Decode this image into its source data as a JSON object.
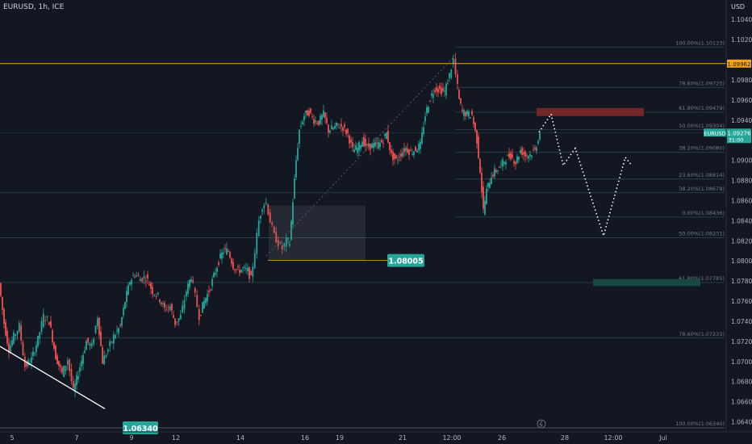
{
  "header": {
    "title": "EURUSD, 1h, ICE",
    "currency": "USD"
  },
  "colors": {
    "background": "#131722",
    "up": "#26a69a",
    "down": "#ef5350",
    "fib_line": "#4a6b6b",
    "fib_text": "#787b86",
    "horizontal": "#f7a21b",
    "supply_zone": "#8b2b2b",
    "demand_zone": "#1b4d45",
    "box": "#2a2e39",
    "trendline": "#ffffff",
    "projection": "#ffffff",
    "price_tag": "#26a69a"
  },
  "chart_data": {
    "type": "candlestick",
    "symbol": "EURUSD",
    "ylim": [
      1.063,
      1.1045
    ],
    "y_ticks": [
      "1.10400",
      "1.10200",
      "1.09800",
      "1.09600",
      "1.09400",
      "1.09000",
      "1.08800",
      "1.08600",
      "1.08400",
      "1.08200",
      "1.08000",
      "1.07800",
      "1.07600",
      "1.07400",
      "1.07200",
      "1.07000",
      "1.06800",
      "1.06600",
      "1.06400"
    ],
    "x_ticks": [
      "5",
      "7",
      "9",
      "12",
      "14",
      "16",
      "19",
      "21",
      "12:00",
      "26",
      "28",
      "12:00",
      "Jul"
    ],
    "last_price": {
      "label": "EURUSD",
      "value": "1.09276",
      "countdown": "31:00",
      "price": 1.09276
    },
    "orange_level": {
      "value": "1.09962",
      "price": 1.09962
    },
    "fib_levels": [
      {
        "label": "100.00%(1.10123)",
        "price": 1.10123
      },
      {
        "label": "78.60%(1.09725)",
        "price": 1.09725
      },
      {
        "label": "61.80%(1.09479)",
        "price": 1.09479
      },
      {
        "label": "50.00%(1.09304)",
        "price": 1.09304
      },
      {
        "label": "38.20%(1.09080)",
        "price": 1.0908
      },
      {
        "label": "23.60%(1.08814)",
        "price": 1.08814
      },
      {
        "label": "38.20%(1.08678)",
        "price": 1.08678
      },
      {
        "label": "0.00%(1.08436)",
        "price": 1.08436
      },
      {
        "label": "50.00%(1.08231)",
        "price": 1.08231
      },
      {
        "label": "61.80%(1.07785)",
        "price": 1.07785
      },
      {
        "label": "78.60%(1.07233)",
        "price": 1.07233
      },
      {
        "label": "100.00%(1.06340)",
        "price": 1.0634
      }
    ],
    "labels": {
      "mid": "1.08005",
      "low": "1.06340"
    },
    "projection_path": [
      1.0928,
      1.0946,
      1.0895,
      1.0912,
      1.0825,
      1.0903,
      1.0895
    ],
    "path_points": [
      [
        0,
        1.0778
      ],
      [
        6,
        1.0738
      ],
      [
        12,
        1.0712
      ],
      [
        18,
        1.0725
      ],
      [
        25,
        1.0735
      ],
      [
        32,
        1.0695
      ],
      [
        40,
        1.0702
      ],
      [
        48,
        1.0722
      ],
      [
        55,
        1.0745
      ],
      [
        62,
        1.074
      ],
      [
        70,
        1.0705
      ],
      [
        78,
        1.0688
      ],
      [
        85,
        1.0702
      ],
      [
        92,
        1.067
      ],
      [
        100,
        1.0695
      ],
      [
        108,
        1.072
      ],
      [
        115,
        1.0715
      ],
      [
        122,
        1.0745
      ],
      [
        128,
        1.07
      ],
      [
        135,
        1.0712
      ],
      [
        142,
        1.0725
      ],
      [
        150,
        1.0735
      ],
      [
        156,
        1.076
      ],
      [
        162,
        1.078
      ],
      [
        168,
        1.0787
      ],
      [
        175,
        1.0782
      ],
      [
        182,
        1.0784
      ],
      [
        190,
        1.077
      ],
      [
        197,
        1.0765
      ],
      [
        205,
        1.0752
      ],
      [
        212,
        1.0755
      ],
      [
        218,
        1.0738
      ],
      [
        225,
        1.0745
      ],
      [
        232,
        1.077
      ],
      [
        238,
        1.0785
      ],
      [
        243,
        1.0765
      ],
      [
        248,
        1.0745
      ],
      [
        254,
        1.076
      ],
      [
        260,
        1.077
      ],
      [
        266,
        1.0785
      ],
      [
        272,
        1.08
      ],
      [
        278,
        1.081
      ],
      [
        284,
        1.081
      ],
      [
        290,
        1.0795
      ],
      [
        296,
        1.079
      ],
      [
        302,
        1.0792
      ],
      [
        308,
        1.079
      ],
      [
        312,
        1.0782
      ],
      [
        317,
        1.081
      ],
      [
        322,
        1.084
      ],
      [
        326,
        1.0855
      ],
      [
        331,
        1.0858
      ],
      [
        336,
        1.084
      ],
      [
        341,
        1.0825
      ],
      [
        346,
        1.0818
      ],
      [
        351,
        1.0812
      ],
      [
        356,
        1.082
      ],
      [
        360,
        1.0818
      ],
      [
        364,
        1.086
      ],
      [
        368,
        1.09
      ],
      [
        372,
        1.093
      ],
      [
        378,
        1.0945
      ],
      [
        384,
        1.0948
      ],
      [
        390,
        1.094
      ],
      [
        396,
        1.0938
      ],
      [
        402,
        1.0946
      ],
      [
        408,
        1.093
      ],
      [
        414,
        1.0932
      ],
      [
        420,
        1.0935
      ],
      [
        426,
        1.0933
      ],
      [
        432,
        1.0926
      ],
      [
        438,
        1.091
      ],
      [
        444,
        1.0912
      ],
      [
        450,
        1.092
      ],
      [
        456,
        1.0913
      ],
      [
        462,
        1.0915
      ],
      [
        468,
        1.0915
      ],
      [
        474,
        1.0918
      ],
      [
        480,
        1.0927
      ],
      [
        486,
        1.0905
      ],
      [
        492,
        1.09
      ],
      [
        498,
        1.0907
      ],
      [
        504,
        1.0912
      ],
      [
        510,
        1.0908
      ],
      [
        516,
        1.0911
      ],
      [
        522,
        1.0915
      ],
      [
        528,
        1.0945
      ],
      [
        534,
        1.0962
      ],
      [
        540,
        1.0972
      ],
      [
        546,
        1.097
      ],
      [
        552,
        1.0968
      ],
      [
        558,
        1.0985
      ],
      [
        563,
        1.1
      ],
      [
        566,
        1.0985
      ],
      [
        570,
        1.096
      ],
      [
        574,
        1.0948
      ],
      [
        580,
        1.0946
      ],
      [
        586,
        1.0945
      ],
      [
        592,
        1.092
      ],
      [
        596,
        1.089
      ],
      [
        600,
        1.085
      ],
      [
        604,
        1.087
      ],
      [
        610,
        1.0885
      ],
      [
        616,
        1.089
      ],
      [
        622,
        1.0895
      ],
      [
        628,
        1.0902
      ],
      [
        634,
        1.0905
      ],
      [
        640,
        1.0898
      ],
      [
        646,
        1.091
      ],
      [
        652,
        1.0905
      ],
      [
        658,
        1.0906
      ],
      [
        664,
        1.091
      ],
      [
        670,
        1.0928
      ]
    ]
  }
}
